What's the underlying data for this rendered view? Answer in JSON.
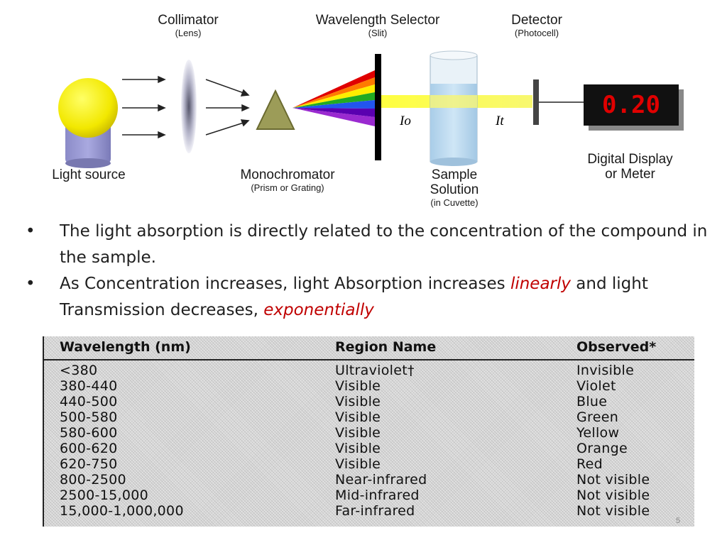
{
  "diagram": {
    "collimator": {
      "title": "Collimator",
      "sub": "(Lens)"
    },
    "selector": {
      "title": "Wavelength Selector",
      "sub": "(Slit)"
    },
    "detector": {
      "title": "Detector",
      "sub": "(Photocell)"
    },
    "light_source": {
      "title": "Light source"
    },
    "monochromator": {
      "title": "Monochromator",
      "sub": "(Prism or Grating)"
    },
    "sample": {
      "title_line1": "Sample",
      "title_line2": "Solution",
      "sub": "(in Cuvette)"
    },
    "display": {
      "title_line1": "Digital Display",
      "title_line2": "or Meter",
      "reading": "0.20"
    },
    "io_label": "Io",
    "it_label": "It"
  },
  "bullets": [
    {
      "text": "The light absorption is directly related to the concentration of the compound in the sample."
    },
    {
      "prefix": "As Concentration increases, light Absorption increases ",
      "emph1": "linearly",
      "middle": " and light Transmission decreases, ",
      "emph2": "exponentially"
    }
  ],
  "table": {
    "headers": [
      "Wavelength (nm)",
      "Region Name",
      "Observed*"
    ],
    "rows": [
      [
        "<380",
        "Ultraviolet†",
        "Invisible"
      ],
      [
        "380-440",
        "Visible",
        "Violet"
      ],
      [
        "440-500",
        "Visible",
        "Blue"
      ],
      [
        "500-580",
        "Visible",
        "Green"
      ],
      [
        "580-600",
        "Visible",
        "Yellow"
      ],
      [
        "600-620",
        "Visible",
        "Orange"
      ],
      [
        "620-750",
        "Visible",
        "Red"
      ],
      [
        "800-2500",
        "Near-infrared",
        "Not visible"
      ],
      [
        "2500-15,000",
        "Mid-infrared",
        "Not visible"
      ],
      [
        "15,000-1,000,000",
        "Far-infrared",
        "Not visible"
      ]
    ]
  },
  "page_number": "5",
  "colors": {
    "highlight": "#c00000",
    "display_digits": "#e00000"
  }
}
